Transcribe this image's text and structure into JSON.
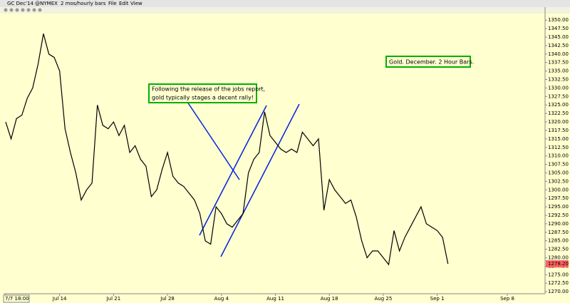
{
  "toolbar": {
    "symbol": "GC Dec'14 @NYMEX",
    "interval": "2 mos/hourly bars",
    "menus": [
      "File",
      "Edit",
      "View"
    ]
  },
  "chart_data": {
    "type": "line",
    "annotations": [
      [
        "Following the release of the jobs report,",
        "gold typically stages a decent rally!"
      ],
      [
        "Gold. December. 2 Hour Bars."
      ]
    ],
    "categories": [
      "7/7 18:00",
      null,
      null,
      null,
      null,
      null,
      null,
      null,
      null,
      null,
      "Jul 14",
      null,
      null,
      null,
      null,
      null,
      null,
      null,
      null,
      null,
      "Jul 21",
      null,
      null,
      null,
      null,
      null,
      null,
      null,
      null,
      null,
      "Jul 28",
      null,
      null,
      null,
      null,
      null,
      null,
      null,
      null,
      null,
      "Aug 4",
      null,
      null,
      null,
      null,
      null,
      null,
      null,
      null,
      null,
      "Aug 11",
      null,
      null,
      null,
      null,
      null,
      null,
      null,
      null,
      null,
      "Aug 18",
      null,
      null,
      null,
      null,
      null,
      null,
      null,
      null,
      null,
      "Aug 25",
      null,
      null,
      null,
      null,
      null,
      null,
      null,
      null,
      null,
      "Sep 1",
      null,
      null,
      null,
      null,
      null,
      null,
      null,
      null,
      null,
      null,
      null,
      null,
      "Sep 8",
      null,
      null,
      null,
      null,
      null,
      null
    ],
    "series": [
      {
        "color": "#000000",
        "values": [
          1320,
          1315,
          1321,
          1322,
          1327,
          1330,
          1337,
          1346,
          1340,
          1339,
          1335,
          1318,
          1311,
          1305,
          1297,
          1300,
          1302,
          1325,
          1319,
          1318,
          1320,
          1316,
          1319,
          1311,
          1313,
          1309,
          1307,
          1298,
          1300,
          1306,
          1311,
          1304,
          1302,
          1301,
          1299,
          1297,
          1293,
          1285,
          1284,
          1295,
          1293,
          1290,
          1289,
          1291,
          1293,
          1305,
          1309,
          1311,
          1323,
          1316,
          1314,
          1312,
          1311,
          1312,
          1311,
          1317,
          1315,
          1313,
          1315,
          1294,
          1303,
          1300,
          1298,
          1296,
          1297,
          1292,
          1285,
          1280,
          1282,
          1282,
          1280,
          1278,
          1288,
          1282,
          1286,
          1289,
          1292,
          1295,
          1290,
          1289,
          1288,
          1286,
          1278.2,
          null,
          null,
          null,
          null,
          null,
          null,
          null,
          null,
          null,
          null,
          null,
          null,
          null,
          null,
          null,
          null,
          null
        ]
      }
    ],
    "last_price": {
      "value": 1278.2,
      "label": "1278.20"
    },
    "ylim": [
      1269.4,
      1353.4
    ],
    "yticks": [
      {
        "value": 1270,
        "label": "1270.00"
      },
      {
        "value": 1272.5,
        "label": "1272.50"
      },
      {
        "value": 1275,
        "label": "1275.00"
      },
      {
        "value": 1277.5,
        "label": "1277.50"
      },
      {
        "value": 1280,
        "label": "1280.00"
      },
      {
        "value": 1282.5,
        "label": "1282.50"
      },
      {
        "value": 1285,
        "label": "1285.00"
      },
      {
        "value": 1287.5,
        "label": "1287.50"
      },
      {
        "value": 1290,
        "label": "1290.00"
      },
      {
        "value": 1292.5,
        "label": "1292.50"
      },
      {
        "value": 1295,
        "label": "1295.00"
      },
      {
        "value": 1297.5,
        "label": "1297.50"
      },
      {
        "value": 1300,
        "label": "1300.00"
      },
      {
        "value": 1302.5,
        "label": "1302.50"
      },
      {
        "value": 1305,
        "label": "1305.00"
      },
      {
        "value": 1307.5,
        "label": "1307.50"
      },
      {
        "value": 1310,
        "label": "1310.00"
      },
      {
        "value": 1312.5,
        "label": "1312.50"
      },
      {
        "value": 1315,
        "label": "1315.00"
      },
      {
        "value": 1317.5,
        "label": "1317.50"
      },
      {
        "value": 1320,
        "label": "1320.00"
      },
      {
        "value": 1322.5,
        "label": "1322.50"
      },
      {
        "value": 1325,
        "label": "1325.00"
      },
      {
        "value": 1327.5,
        "label": "1327.50"
      },
      {
        "value": 1330,
        "label": "1330.00"
      },
      {
        "value": 1332.5,
        "label": "1332.50"
      },
      {
        "value": 1335,
        "label": "1335.00"
      },
      {
        "value": 1337.5,
        "label": "1337.50"
      },
      {
        "value": 1340,
        "label": "1340.00"
      },
      {
        "value": 1342.5,
        "label": "1342.50"
      },
      {
        "value": 1345,
        "label": "1345.00"
      },
      {
        "value": 1347.5,
        "label": "1347.50"
      },
      {
        "value": 1350,
        "label": "1350.00"
      }
    ],
    "grid": false
  }
}
